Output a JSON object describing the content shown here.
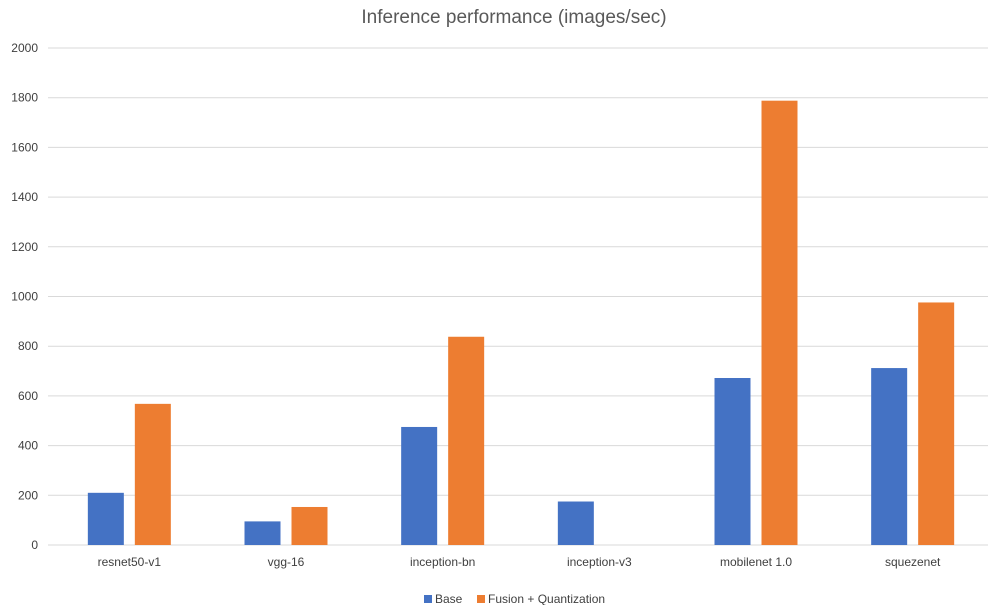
{
  "chart_data": {
    "type": "bar",
    "title": "Inference performance (images/sec)",
    "xlabel": "",
    "ylabel": "",
    "categories": [
      "resnet50-v1",
      "vgg-16",
      "inception-bn",
      "inception-v3",
      "mobilenet 1.0",
      "squezenet"
    ],
    "series": [
      {
        "name": "Base",
        "color": "#4472c4",
        "values": [
          210,
          95,
          475,
          175,
          672,
          712
        ]
      },
      {
        "name": "Fusion + Quantization",
        "color": "#ed7d31",
        "values": [
          568,
          153,
          838,
          null,
          1788,
          976
        ]
      }
    ],
    "ylim": [
      0,
      2000
    ],
    "yticks": [
      0,
      200,
      400,
      600,
      800,
      1000,
      1200,
      1400,
      1600,
      1800,
      2000
    ],
    "grid": true,
    "legend": "bottom-center"
  }
}
